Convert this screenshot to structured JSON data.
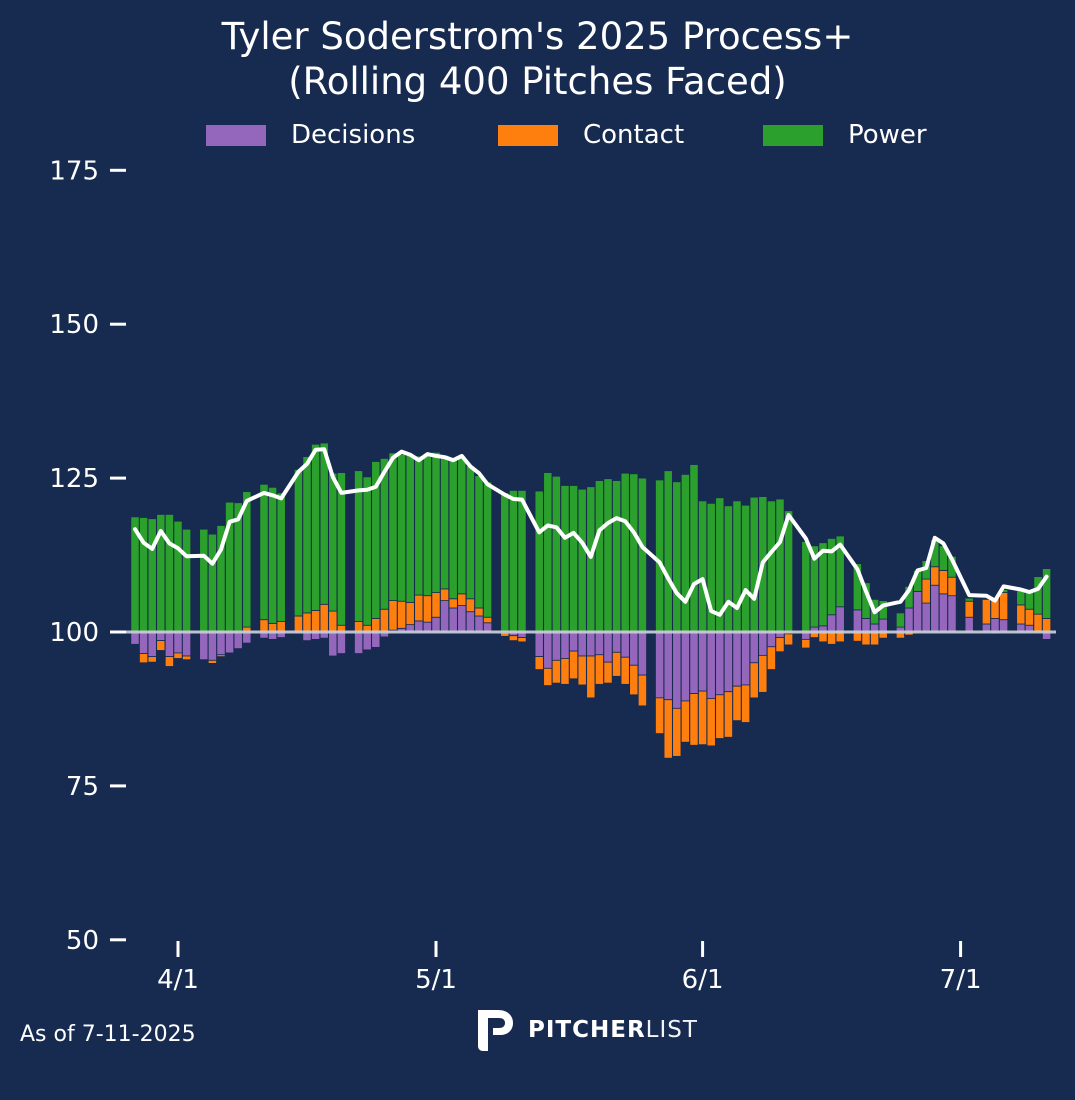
{
  "chart_data": {
    "type": "bar",
    "subtype": "stacked-diverging-with-line",
    "title_line1": "Tyler Soderstrom's 2025 Process+",
    "title_line2": "(Rolling 400 Pitches Faced)",
    "xlabel": "",
    "ylabel": "",
    "ylim": [
      50,
      175
    ],
    "yticks": [
      50,
      75,
      100,
      125,
      150,
      175
    ],
    "baseline": 100,
    "grid": false,
    "legend_placement": "top-center",
    "x_unit": "days since 4/1",
    "xticks": [
      {
        "day": 0,
        "label": "4/1"
      },
      {
        "day": 30,
        "label": "5/1"
      },
      {
        "day": 61,
        "label": "6/1"
      },
      {
        "day": 91,
        "label": "7/1"
      }
    ],
    "colors": {
      "decisions": "#9467bd",
      "contact": "#ff7f0e",
      "power": "#2ca02c",
      "line": "#ffffff",
      "baseline": "#d0d4dc",
      "background": "#172a50"
    },
    "series_names": {
      "decisions": "Decisions",
      "contact": "Contact",
      "power": "Power",
      "line": "Process+"
    },
    "points": [
      {
        "day": -5,
        "decisions": -2.0,
        "contact": 0,
        "power": 18.7,
        "total": 116.7
      },
      {
        "day": -4,
        "decisions": -3.5,
        "contact": -1.5,
        "power": 18.6,
        "total": 114.5
      },
      {
        "day": -3,
        "decisions": -4.0,
        "contact": -0.9,
        "power": 18.4,
        "total": 113.5
      },
      {
        "day": -2,
        "decisions": -1.4,
        "contact": -1.6,
        "power": 19.1,
        "total": 116.4
      },
      {
        "day": -1,
        "decisions": -4.0,
        "contact": -1.6,
        "power": 19.1,
        "total": 114.4
      },
      {
        "day": 0,
        "decisions": -3.4,
        "contact": -0.9,
        "power": 18.0,
        "total": 113.6
      },
      {
        "day": 1,
        "decisions": -3.9,
        "contact": -0.6,
        "power": 16.7,
        "total": 112.3
      },
      {
        "day": 3,
        "decisions": -4.5,
        "contact": 0,
        "power": 16.7,
        "total": 112.4
      },
      {
        "day": 4,
        "decisions": -4.6,
        "contact": -0.5,
        "power": 15.9,
        "total": 111.1
      },
      {
        "day": 5,
        "decisions": -3.7,
        "contact": -0.3,
        "power": 17.3,
        "total": 113.4
      },
      {
        "day": 6,
        "decisions": -3.4,
        "contact": 0,
        "power": 21.1,
        "total": 117.9
      },
      {
        "day": 7,
        "decisions": -2.7,
        "contact": 0,
        "power": 21.0,
        "total": 118.3
      },
      {
        "day": 8,
        "decisions": -1.8,
        "contact": 0.8,
        "power": 22.0,
        "total": 121.3
      },
      {
        "day": 10,
        "decisions": -1.0,
        "contact": 2.0,
        "power": 22.0,
        "total": 122.6
      },
      {
        "day": 11,
        "decisions": -1.2,
        "contact": 1.4,
        "power": 22.1,
        "total": 122.2
      },
      {
        "day": 12,
        "decisions": -0.9,
        "contact": 1.7,
        "power": 20.9,
        "total": 121.7
      },
      {
        "day": 14,
        "decisions": -0.3,
        "contact": 2.6,
        "power": 23.8,
        "total": 126.0
      },
      {
        "day": 15,
        "decisions": -1.4,
        "contact": 3.1,
        "power": 25.4,
        "total": 127.3
      },
      {
        "day": 16,
        "decisions": -1.2,
        "contact": 3.5,
        "power": 27.0,
        "total": 129.6
      },
      {
        "day": 17,
        "decisions": -1.0,
        "contact": 4.5,
        "power": 26.2,
        "total": 129.7
      },
      {
        "day": 18,
        "decisions": -3.9,
        "contact": 3.4,
        "power": 22.4,
        "total": 125.2
      },
      {
        "day": 19,
        "decisions": -3.5,
        "contact": 1.1,
        "power": 24.8,
        "total": 122.6
      },
      {
        "day": 21,
        "decisions": -3.5,
        "contact": 1.7,
        "power": 24.5,
        "total": 123.0
      },
      {
        "day": 22,
        "decisions": -2.9,
        "contact": 1.1,
        "power": 24.1,
        "total": 123.1
      },
      {
        "day": 23,
        "decisions": -2.5,
        "contact": 2.2,
        "power": 25.5,
        "total": 123.6
      },
      {
        "day": 24,
        "decisions": -0.8,
        "contact": 3.7,
        "power": 24.5,
        "total": 126.0
      },
      {
        "day": 25,
        "decisions": 0.3,
        "contact": 4.8,
        "power": 24.0,
        "total": 128.3
      },
      {
        "day": 26,
        "decisions": 0.6,
        "contact": 4.4,
        "power": 23.9,
        "total": 129.3
      },
      {
        "day": 27,
        "decisions": 1.2,
        "contact": 3.6,
        "power": 23.9,
        "total": 128.8
      },
      {
        "day": 28,
        "decisions": 1.8,
        "contact": 4.2,
        "power": 22.6,
        "total": 127.9
      },
      {
        "day": 29,
        "decisions": 1.6,
        "contact": 4.3,
        "power": 22.9,
        "total": 128.9
      },
      {
        "day": 30,
        "decisions": 2.4,
        "contact": 4.0,
        "power": 22.8,
        "total": 128.6
      },
      {
        "day": 31,
        "decisions": 5.1,
        "contact": 1.9,
        "power": 21.7,
        "total": 128.4
      },
      {
        "day": 32,
        "decisions": 3.9,
        "contact": 1.5,
        "power": 22.8,
        "total": 127.9
      },
      {
        "day": 33,
        "decisions": 4.3,
        "contact": 1.9,
        "power": 22.3,
        "total": 128.6
      },
      {
        "day": 34,
        "decisions": 3.3,
        "contact": 2.1,
        "power": 21.6,
        "total": 126.9
      },
      {
        "day": 35,
        "decisions": 2.6,
        "contact": 1.3,
        "power": 21.5,
        "total": 125.8
      },
      {
        "day": 36,
        "decisions": 1.5,
        "contact": 0.9,
        "power": 22.0,
        "total": 124.0
      },
      {
        "day": 38,
        "decisions": -0.1,
        "contact": -0.6,
        "power": 22.6,
        "total": 122.3
      },
      {
        "day": 39,
        "decisions": -0.6,
        "contact": -0.8,
        "power": 23.0,
        "total": 121.6
      },
      {
        "day": 40,
        "decisions": -0.9,
        "contact": -0.7,
        "power": 23.0,
        "total": 121.5
      },
      {
        "day": 42,
        "decisions": -4.0,
        "contact": -2.1,
        "power": 22.9,
        "total": 116.2
      },
      {
        "day": 43,
        "decisions": -5.9,
        "contact": -2.8,
        "power": 25.9,
        "total": 117.3
      },
      {
        "day": 44,
        "decisions": -4.6,
        "contact": -3.7,
        "power": 25.3,
        "total": 117.0
      },
      {
        "day": 45,
        "decisions": -4.3,
        "contact": -4.2,
        "power": 23.8,
        "total": 115.3
      },
      {
        "day": 46,
        "decisions": -3.1,
        "contact": -4.5,
        "power": 23.8,
        "total": 116.1
      },
      {
        "day": 47,
        "decisions": -3.9,
        "contact": -4.7,
        "power": 23.2,
        "total": 114.5
      },
      {
        "day": 48,
        "decisions": -3.9,
        "contact": -6.8,
        "power": 23.6,
        "total": 112.2
      },
      {
        "day": 49,
        "decisions": -3.7,
        "contact": -4.8,
        "power": 24.6,
        "total": 116.5
      },
      {
        "day": 50,
        "decisions": -4.9,
        "contact": -3.4,
        "power": 24.9,
        "total": 117.7
      },
      {
        "day": 51,
        "decisions": -3.3,
        "contact": -3.9,
        "power": 24.6,
        "total": 118.5
      },
      {
        "day": 52,
        "decisions": -4.1,
        "contact": -4.4,
        "power": 25.8,
        "total": 118.0
      },
      {
        "day": 53,
        "decisions": -5.4,
        "contact": -4.8,
        "power": 25.7,
        "total": 116.2
      },
      {
        "day": 54,
        "decisions": -7.0,
        "contact": -5.0,
        "power": 25.0,
        "total": 113.8
      },
      {
        "day": 56,
        "decisions": -10.7,
        "contact": -5.8,
        "power": 24.7,
        "total": 111.3
      },
      {
        "day": 57,
        "decisions": -11.0,
        "contact": -9.5,
        "power": 26.2,
        "total": 108.7
      },
      {
        "day": 58,
        "decisions": -12.4,
        "contact": -7.8,
        "power": 24.4,
        "total": 106.3
      },
      {
        "day": 59,
        "decisions": -11.2,
        "contact": -6.7,
        "power": 25.6,
        "total": 104.9
      },
      {
        "day": 60,
        "decisions": -10.0,
        "contact": -8.4,
        "power": 27.2,
        "total": 107.8
      },
      {
        "day": 61,
        "decisions": -9.6,
        "contact": -8.7,
        "power": 21.3,
        "total": 108.6
      },
      {
        "day": 62,
        "decisions": -10.8,
        "contact": -7.7,
        "power": 20.9,
        "total": 103.4
      },
      {
        "day": 63,
        "decisions": -10.2,
        "contact": -7.1,
        "power": 21.8,
        "total": 102.8
      },
      {
        "day": 64,
        "decisions": -9.7,
        "contact": -7.4,
        "power": 20.5,
        "total": 104.9
      },
      {
        "day": 65,
        "decisions": -8.8,
        "contact": -5.6,
        "power": 21.3,
        "total": 103.9
      },
      {
        "day": 66,
        "decisions": -8.6,
        "contact": -6.1,
        "power": 20.6,
        "total": 106.8
      },
      {
        "day": 67,
        "decisions": -5.0,
        "contact": -5.7,
        "power": 21.9,
        "total": 105.4
      },
      {
        "day": 68,
        "decisions": -3.8,
        "contact": -6.0,
        "power": 22.0,
        "total": 111.3
      },
      {
        "day": 69,
        "decisions": -2.4,
        "contact": -3.7,
        "power": 21.3,
        "total": 113.0
      },
      {
        "day": 70,
        "decisions": -0.9,
        "contact": -2.3,
        "power": 21.6,
        "total": 114.6
      },
      {
        "day": 71,
        "decisions": -0.3,
        "contact": -1.8,
        "power": 19.7,
        "total": 119.0
      },
      {
        "day": 73,
        "decisions": -1.2,
        "contact": -1.4,
        "power": 14.7,
        "total": 115.2
      },
      {
        "day": 74,
        "decisions": 0.8,
        "contact": -0.9,
        "power": 13.2,
        "total": 111.9
      },
      {
        "day": 75,
        "decisions": 1.0,
        "contact": -1.6,
        "power": 13.5,
        "total": 113.2
      },
      {
        "day": 76,
        "decisions": 2.8,
        "contact": -2.0,
        "power": 12.4,
        "total": 113.1
      },
      {
        "day": 77,
        "decisions": 4.1,
        "contact": -1.6,
        "power": 11.5,
        "total": 114.2
      },
      {
        "day": 79,
        "decisions": 3.6,
        "contact": -1.5,
        "power": 7.5,
        "total": 110.2
      },
      {
        "day": 80,
        "decisions": 2.2,
        "contact": -2.1,
        "power": 5.8,
        "total": 106.6
      },
      {
        "day": 81,
        "decisions": 1.3,
        "contact": -2.1,
        "power": 4.0,
        "total": 103.2
      },
      {
        "day": 82,
        "decisions": 2.1,
        "contact": -1.0,
        "power": 3.0,
        "total": 104.3
      },
      {
        "day": 84,
        "decisions": 0.8,
        "contact": -1.0,
        "power": 2.3,
        "total": 104.9
      },
      {
        "day": 85,
        "decisions": 3.9,
        "contact": -0.5,
        "power": 3.5,
        "total": 106.8
      },
      {
        "day": 86,
        "decisions": 6.6,
        "contact": 0,
        "power": 3.4,
        "total": 110.0
      },
      {
        "day": 87,
        "decisions": 4.7,
        "contact": 3.9,
        "power": 3.0,
        "total": 110.4
      },
      {
        "day": 88,
        "decisions": 7.6,
        "contact": 3.0,
        "power": 4.4,
        "total": 115.3
      },
      {
        "day": 89,
        "decisions": 6.2,
        "contact": 3.8,
        "power": 4.0,
        "total": 114.4
      },
      {
        "day": 90,
        "decisions": 5.9,
        "contact": 3.0,
        "power": 3.4,
        "total": 111.8
      },
      {
        "day": 92,
        "decisions": 2.4,
        "contact": 2.6,
        "power": 0.5,
        "total": 106.0
      },
      {
        "day": 94,
        "decisions": 1.3,
        "contact": 4.0,
        "power": 0,
        "total": 105.9
      },
      {
        "day": 95,
        "decisions": 2.2,
        "contact": 3.4,
        "power": -0.3,
        "total": 105.1
      },
      {
        "day": 96,
        "decisions": 2.0,
        "contact": 4.4,
        "power": 0.5,
        "total": 107.4
      },
      {
        "day": 98,
        "decisions": 1.3,
        "contact": 3.1,
        "power": 2.3,
        "total": 106.9
      },
      {
        "day": 99,
        "decisions": 1.1,
        "contact": 2.6,
        "power": 3.1,
        "total": 106.5
      },
      {
        "day": 100,
        "decisions": 0,
        "contact": 2.9,
        "power": 6.1,
        "total": 107.0
      },
      {
        "day": 101,
        "decisions": -1.2,
        "contact": 2.2,
        "power": 8.1,
        "total": 109.0
      }
    ]
  },
  "legend": {
    "items": [
      {
        "key": "decisions",
        "label": "Decisions"
      },
      {
        "key": "contact",
        "label": "Contact"
      },
      {
        "key": "power",
        "label": "Power"
      }
    ]
  },
  "footer": {
    "as_of": "As of 7-11-2025",
    "brand_bold": "PITCHER",
    "brand_light": "LIST"
  }
}
